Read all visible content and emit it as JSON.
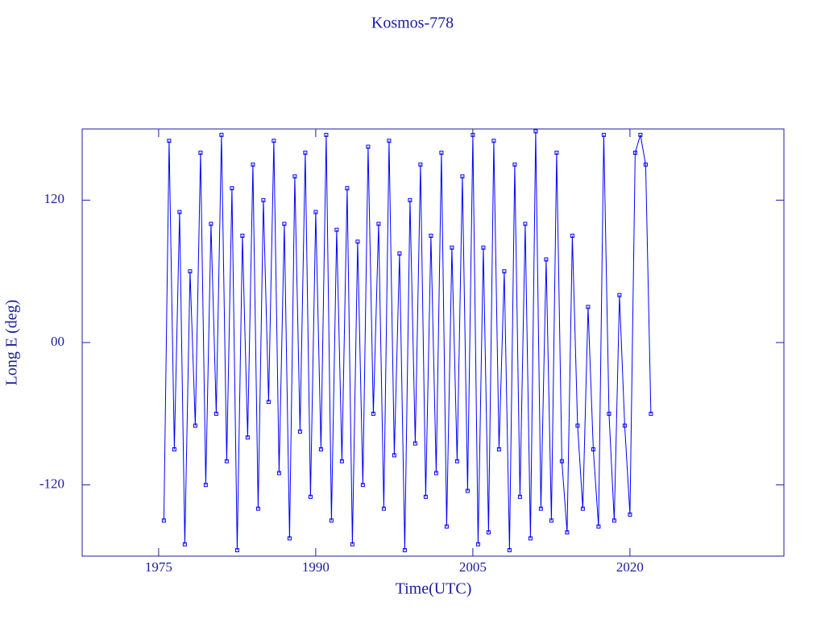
{
  "chart_data": {
    "type": "line",
    "title": "Kosmos-778",
    "x_label": "Time(UTC)",
    "y_label": "Long E (deg)",
    "xlim": [
      1967.7,
      2034.7
    ],
    "ylim": [
      -180,
      180
    ],
    "xticks": [
      1975,
      1990,
      2005,
      2020
    ],
    "yticks": [
      -120,
      {
        "value": 0,
        "label": "00"
      },
      120
    ],
    "series": [
      {
        "color": "#0000ff",
        "x": [
          1975.5,
          1976.0,
          1976.5,
          1977.0,
          1977.5,
          1978.0,
          1978.5,
          1979.0,
          1979.5,
          1980.0,
          1980.5,
          1981.0,
          1981.5,
          1982.0,
          1982.5,
          1983.0,
          1983.5,
          1984.0,
          1984.5,
          1985.0,
          1985.5,
          1986.0,
          1986.5,
          1987.0,
          1987.5,
          1988.0,
          1988.5,
          1989.0,
          1989.5,
          1990.0,
          1990.5,
          1991.0,
          1991.5,
          1992.0,
          1992.5,
          1993.0,
          1993.5,
          1994.0,
          1994.5,
          1995.0,
          1995.5,
          1996.0,
          1996.5,
          1997.0,
          1997.5,
          1998.0,
          1998.5,
          1999.0,
          1999.5,
          2000.0,
          2000.5,
          2001.0,
          2001.5,
          2002.0,
          2002.5,
          2003.0,
          2003.5,
          2004.0,
          2004.5,
          2005.0,
          2005.5,
          2006.0,
          2006.5,
          2007.0,
          2007.5,
          2008.0,
          2008.5,
          2009.0,
          2009.5,
          2010.0,
          2010.5,
          2011.0,
          2011.5,
          2012.0,
          2012.5,
          2013.0,
          2013.5,
          2014.0,
          2014.5,
          2015.0,
          2015.5,
          2016.0,
          2016.5,
          2017.0,
          2017.5,
          2018.0,
          2018.5,
          2019.0,
          2019.5,
          2020.0,
          2020.5,
          2021.0,
          2021.5,
          2022.0
        ],
        "values": [
          -150,
          170,
          -90,
          110,
          -170,
          60,
          -70,
          160,
          -120,
          100,
          -60,
          175,
          -100,
          130,
          -175,
          90,
          -80,
          150,
          -140,
          120,
          -50,
          170,
          -110,
          100,
          -165,
          140,
          -75,
          160,
          -130,
          110,
          -90,
          175,
          -150,
          95,
          -100,
          130,
          -170,
          85,
          -120,
          165,
          -60,
          100,
          -140,
          170,
          -95,
          75,
          -175,
          120,
          -85,
          150,
          -130,
          90,
          -110,
          160,
          -155,
          80,
          -100,
          140,
          -125,
          175,
          -170,
          80,
          -160,
          170,
          -90,
          60,
          -175,
          150,
          -130,
          100,
          -165,
          178,
          -140,
          70,
          -150,
          160,
          -100,
          -160,
          90,
          -70,
          -140,
          30,
          -90,
          -155,
          175,
          -60,
          -150,
          40,
          -70,
          -145,
          160,
          175,
          150,
          -60
        ]
      }
    ]
  }
}
